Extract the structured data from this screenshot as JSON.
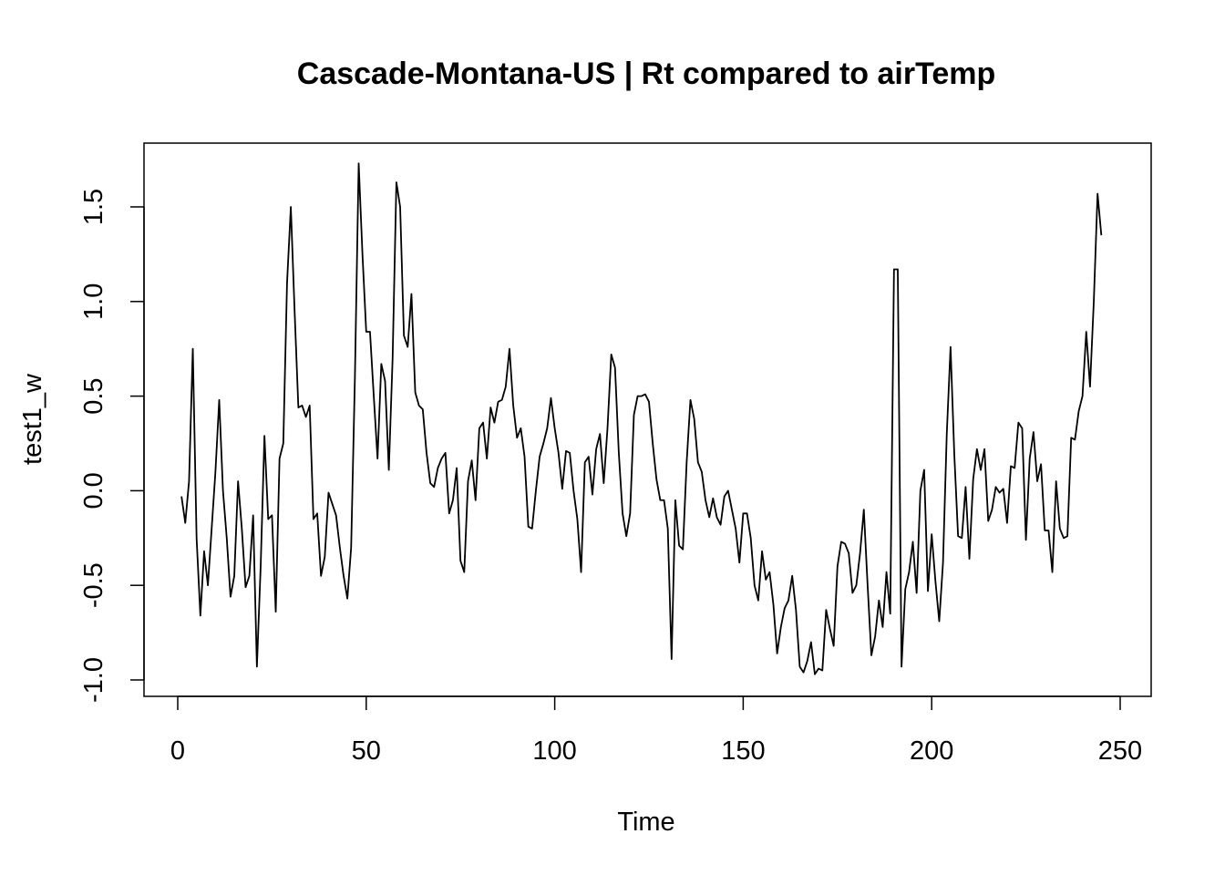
{
  "chart_data": {
    "type": "line",
    "title": "Cascade-Montana-US | Rt compared to airTemp",
    "xlabel": "Time",
    "ylabel": "test1_w",
    "xlim": [
      0,
      250
    ],
    "ylim": [
      -1.0,
      1.7
    ],
    "x_ticks": [
      0,
      50,
      100,
      150,
      200,
      250
    ],
    "x_tick_labels": [
      "0",
      "50",
      "100",
      "150",
      "200",
      "250"
    ],
    "y_ticks": [
      -1.0,
      -0.5,
      0.0,
      0.5,
      1.0,
      1.5
    ],
    "y_tick_labels": [
      "-1.0",
      "-0.5",
      "0.0",
      "0.5",
      "1.0",
      "1.5"
    ],
    "grid": false,
    "color": "#000000",
    "series": [
      {
        "x_start": 1,
        "x_step": 1,
        "values": [
          -0.03,
          -0.17,
          0.05,
          0.75,
          -0.25,
          -0.66,
          -0.32,
          -0.5,
          -0.2,
          0.1,
          0.48,
          0.0,
          -0.25,
          -0.56,
          -0.45,
          0.05,
          -0.2,
          -0.51,
          -0.45,
          -0.13,
          -0.93,
          -0.4,
          0.29,
          -0.15,
          -0.13,
          -0.64,
          0.17,
          0.25,
          1.1,
          1.5,
          0.95,
          0.44,
          0.45,
          0.39,
          0.45,
          -0.15,
          -0.12,
          -0.45,
          -0.35,
          -0.01,
          -0.07,
          -0.13,
          -0.3,
          -0.45,
          -0.57,
          -0.3,
          0.6,
          1.73,
          1.25,
          0.84,
          0.84,
          0.5,
          0.17,
          0.67,
          0.58,
          0.11,
          0.7,
          1.63,
          1.5,
          0.82,
          0.76,
          1.04,
          0.52,
          0.45,
          0.43,
          0.2,
          0.04,
          0.02,
          0.12,
          0.17,
          0.2,
          -0.12,
          -0.05,
          0.12,
          -0.37,
          -0.43,
          0.05,
          0.16,
          -0.05,
          0.33,
          0.36,
          0.17,
          0.44,
          0.36,
          0.47,
          0.48,
          0.55,
          0.75,
          0.45,
          0.28,
          0.33,
          0.18,
          -0.19,
          -0.2,
          0.0,
          0.18,
          0.25,
          0.33,
          0.49,
          0.33,
          0.2,
          0.01,
          0.21,
          0.2,
          0.0,
          -0.15,
          -0.43,
          0.15,
          0.18,
          -0.02,
          0.22,
          0.3,
          0.04,
          0.33,
          0.72,
          0.65,
          0.2,
          -0.12,
          -0.24,
          -0.12,
          0.4,
          0.5,
          0.5,
          0.51,
          0.47,
          0.25,
          0.06,
          -0.05,
          -0.05,
          -0.2,
          -0.89,
          -0.05,
          -0.29,
          -0.31,
          0.15,
          0.48,
          0.38,
          0.15,
          0.1,
          -0.05,
          -0.14,
          -0.04,
          -0.14,
          -0.18,
          -0.03,
          0.0,
          -0.1,
          -0.2,
          -0.38,
          -0.12,
          -0.12,
          -0.25,
          -0.5,
          -0.58,
          -0.32,
          -0.47,
          -0.43,
          -0.6,
          -0.86,
          -0.72,
          -0.62,
          -0.58,
          -0.45,
          -0.63,
          -0.93,
          -0.96,
          -0.9,
          -0.8,
          -0.97,
          -0.94,
          -0.95,
          -0.63,
          -0.73,
          -0.82,
          -0.4,
          -0.27,
          -0.28,
          -0.33,
          -0.54,
          -0.5,
          -0.33,
          -0.1,
          -0.5,
          -0.87,
          -0.77,
          -0.58,
          -0.72,
          -0.43,
          -0.65,
          1.17,
          1.17,
          -0.93,
          -0.52,
          -0.43,
          -0.27,
          -0.54,
          0.0,
          0.11,
          -0.53,
          -0.23,
          -0.48,
          -0.69,
          -0.38,
          0.3,
          0.76,
          0.19,
          -0.24,
          -0.25,
          0.02,
          -0.36,
          0.06,
          0.22,
          0.11,
          0.22,
          -0.16,
          -0.1,
          0.02,
          -0.01,
          0.01,
          -0.17,
          0.13,
          0.12,
          0.36,
          0.33,
          -0.26,
          0.17,
          0.31,
          0.05,
          0.14,
          -0.21,
          -0.21,
          -0.43,
          0.05,
          -0.2,
          -0.25,
          -0.24,
          0.28,
          0.27,
          0.42,
          0.5,
          0.84,
          0.55,
          1.0,
          1.57,
          1.35
        ]
      }
    ]
  }
}
